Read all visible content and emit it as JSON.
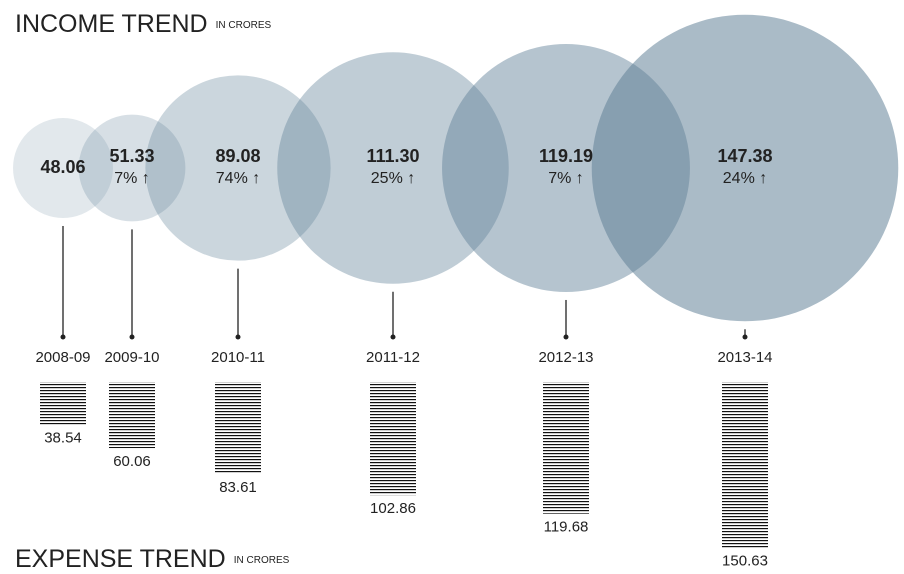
{
  "chart_data": [
    {
      "type": "bubble",
      "title": "INCOME TREND",
      "subtitle": "IN CRORES",
      "categories": [
        "2008-09",
        "2009-10",
        "2010-11",
        "2011-12",
        "2012-13",
        "2013-14"
      ],
      "values": [
        48.06,
        51.33,
        89.08,
        111.3,
        119.19,
        147.38
      ],
      "value_labels": [
        "48.06",
        "51.33",
        "89.08",
        "111.30",
        "119.19",
        "147.38"
      ],
      "growth": [
        null,
        7,
        74,
        25,
        7,
        24
      ],
      "growth_labels": [
        null,
        "7% ↑",
        "74% ↑",
        "25% ↑",
        "7% ↑",
        "24% ↑"
      ],
      "color": "#5e7e96"
    },
    {
      "type": "line-stack",
      "title": "EXPENSE TREND",
      "subtitle": "IN CRORES",
      "values": [
        38.54,
        60.06,
        83.61,
        102.86,
        119.68,
        150.63
      ],
      "color": "#111111"
    }
  ]
}
